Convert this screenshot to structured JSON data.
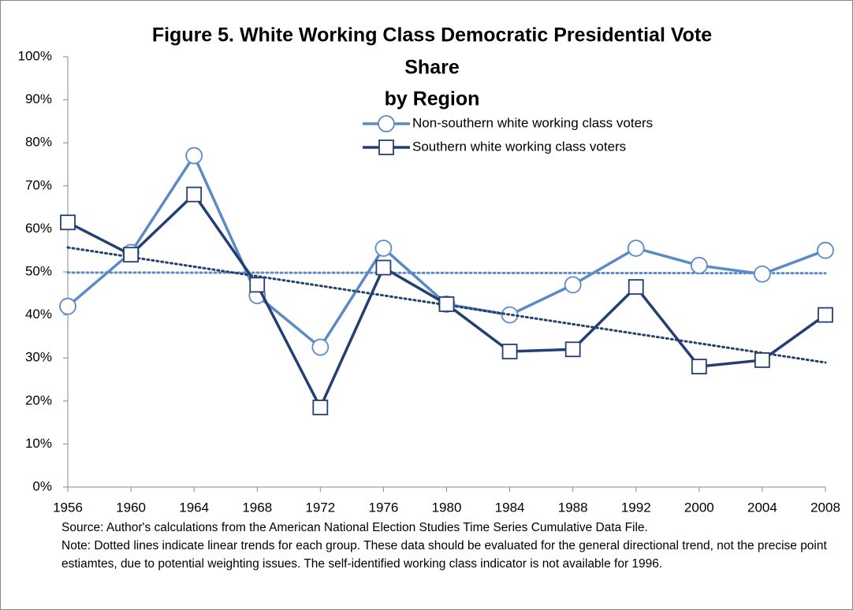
{
  "chart_data": {
    "type": "line",
    "title": [
      "Figure 5. White Working Class Democratic Presidential Vote",
      "Share",
      "by Region"
    ],
    "categories": [
      "1956",
      "1960",
      "1964",
      "1968",
      "1972",
      "1976",
      "1980",
      "1984",
      "1988",
      "1992",
      "2000",
      "2004",
      "2008"
    ],
    "series": [
      {
        "name": "Non-southern white working class voters",
        "color": "#5b8ac6",
        "marker": "circle",
        "trendline": "linear",
        "values": [
          42,
          54.5,
          77,
          44.5,
          32.5,
          55.5,
          42.5,
          40,
          47,
          55.5,
          51.5,
          49.5,
          55
        ]
      },
      {
        "name": "Southern white working class voters",
        "color": "#243f72",
        "marker": "square",
        "trendline": "linear",
        "values": [
          61.5,
          54,
          68,
          47,
          18.5,
          51,
          42.5,
          31.5,
          32,
          46.5,
          28,
          29.5,
          40
        ]
      }
    ],
    "ylim": [
      0,
      100
    ],
    "yticks": [
      {
        "value": 0,
        "label": "0%"
      },
      {
        "value": 10,
        "label": "10%"
      },
      {
        "value": 20,
        "label": "20%"
      },
      {
        "value": 30,
        "label": "30%"
      },
      {
        "value": 40,
        "label": "40%"
      },
      {
        "value": 50,
        "label": "50%"
      },
      {
        "value": 60,
        "label": "60%"
      },
      {
        "value": 70,
        "label": "70%"
      },
      {
        "value": 80,
        "label": "80%"
      },
      {
        "value": 90,
        "label": "90%"
      },
      {
        "value": 100,
        "label": "100%"
      }
    ],
    "grid": false,
    "legend": "top",
    "source": "Source: Author's calculations from the American National Election Studies Time Series Cumulative Data File.",
    "note": "Note: Dotted lines indicate linear trends for each group. These data should be evaluated for the general directional trend, not the precise point estiamtes, due to potential weighting issues. The self-identified working class indicator is not available for 1996."
  }
}
